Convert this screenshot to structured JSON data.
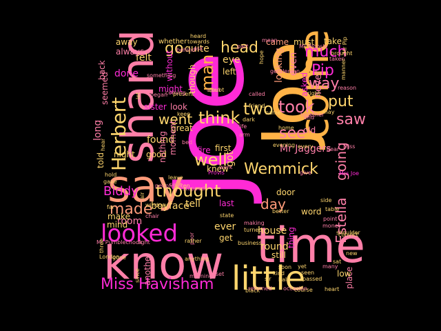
{
  "palette": {
    "magenta": "#ff2bd6",
    "pink": "#ff7fa8",
    "coral": "#ff9b7a",
    "orange": "#ffb347",
    "yellow": "#ffd66e",
    "background": "#000000"
  },
  "words": [
    {
      "text": "Joe",
      "color": "#ff2bd6"
    },
    {
      "text": "Joe",
      "color": "#ffb347"
    },
    {
      "text": "know",
      "color": "#ff7fa8"
    },
    {
      "text": "time",
      "color": "#ff7fa8"
    },
    {
      "text": "come",
      "color": "#ffb347"
    },
    {
      "text": "shand",
      "color": "#ff7fa8"
    },
    {
      "text": "say",
      "color": "#ff9b7a"
    },
    {
      "text": "little",
      "color": "#ffd66e"
    },
    {
      "text": "Miss Havisham",
      "color": "#ff2bd6"
    },
    {
      "text": "looked",
      "color": "#ff2bd6"
    },
    {
      "text": "Herbert",
      "color": "#ffd66e"
    },
    {
      "text": "Wemmick",
      "color": "#ffd66e"
    },
    {
      "text": "well",
      "color": "#ffd66e"
    },
    {
      "text": "thought",
      "color": "#ffd66e"
    },
    {
      "text": "think",
      "color": "#ffd66e"
    },
    {
      "text": "went",
      "color": "#ffd66e"
    },
    {
      "text": "two",
      "color": "#ffd66e"
    },
    {
      "text": "took",
      "color": "#ff7fa8"
    },
    {
      "text": "see",
      "color": "#ff7fa8"
    },
    {
      "text": "made",
      "color": "#ff9b7a"
    },
    {
      "text": "day",
      "color": "#ff9b7a"
    },
    {
      "text": "Estella",
      "color": "#ff7fa8"
    },
    {
      "text": "going",
      "color": "#ff7fa8"
    },
    {
      "text": "Pip",
      "color": "#ff2bd6"
    },
    {
      "text": "much",
      "color": "#ff2bd6"
    },
    {
      "text": "way",
      "color": "#ff7fa8"
    },
    {
      "text": "put",
      "color": "#ffd66e"
    },
    {
      "text": "saw",
      "color": "#ff7fa8"
    },
    {
      "text": "head",
      "color": "#ffd66e"
    },
    {
      "text": "man",
      "color": "#ffb347"
    },
    {
      "text": "go",
      "color": "#ffd66e"
    },
    {
      "text": "Biddy",
      "color": "#ff2bd6"
    },
    {
      "text": "Mr Jaggers",
      "color": "#ff7fa8"
    },
    {
      "text": "house",
      "color": "#ffd66e"
    },
    {
      "text": "round",
      "color": "#ffd66e"
    },
    {
      "text": "felt",
      "color": "#ffd66e"
    },
    {
      "text": "done",
      "color": "#ff2bd6"
    },
    {
      "text": "got",
      "color": "#ffd66e"
    },
    {
      "text": "quite",
      "color": "#ffd66e"
    },
    {
      "text": "eye",
      "color": "#ffd66e"
    },
    {
      "text": "came",
      "color": "#ff9b7a"
    },
    {
      "text": "must",
      "color": "#ffd66e"
    },
    {
      "text": "take",
      "color": "#ffd66e"
    },
    {
      "text": "never",
      "color": "#ff7fa8"
    },
    {
      "text": "found",
      "color": "#ffd66e"
    },
    {
      "text": "door",
      "color": "#ffd66e"
    },
    {
      "text": "word",
      "color": "#ffd66e"
    },
    {
      "text": "room",
      "color": "#ff7fa8"
    },
    {
      "text": "ever",
      "color": "#ffd66e"
    },
    {
      "text": "boy",
      "color": "#ffd66e"
    },
    {
      "text": "face",
      "color": "#ffd66e"
    },
    {
      "text": "tell",
      "color": "#ffd66e"
    },
    {
      "text": "last",
      "color": "#ff2bd6"
    },
    {
      "text": "knew",
      "color": "#ffd66e"
    },
    {
      "text": "first",
      "color": "#ffd66e"
    },
    {
      "text": "fire",
      "color": "#ff2bd6"
    },
    {
      "text": "old",
      "color": "#ff7fa8"
    },
    {
      "text": "even",
      "color": "#ff7fa8"
    },
    {
      "text": "looking",
      "color": "#ff9b7a"
    },
    {
      "text": "asked",
      "color": "#ff2bd6"
    },
    {
      "text": "mind",
      "color": "#ffd66e"
    },
    {
      "text": "make",
      "color": "#ffd66e"
    },
    {
      "text": "long",
      "color": "#ff7fa8"
    },
    {
      "text": "night",
      "color": "#ffd66e"
    },
    {
      "text": "look",
      "color": "#ff7fa8"
    },
    {
      "text": "good",
      "color": "#ffd66e"
    },
    {
      "text": "great",
      "color": "#ffd66e"
    },
    {
      "text": "always",
      "color": "#ff7fa8"
    },
    {
      "text": "away",
      "color": "#ffd66e"
    },
    {
      "text": "back",
      "color": "#ff7fa8"
    },
    {
      "text": "might",
      "color": "#ff2bd6"
    },
    {
      "text": "sister",
      "color": "#ff2bd6"
    },
    {
      "text": "another",
      "color": "#ff7fa8"
    },
    {
      "text": "still",
      "color": "#ffd66e"
    },
    {
      "text": "thing",
      "color": "#ff2bd6"
    },
    {
      "text": "told",
      "color": "#ffd66e"
    },
    {
      "text": "seemed",
      "color": "#ff7fa8"
    },
    {
      "text": "left",
      "color": "#ffd66e"
    },
    {
      "text": "without",
      "color": "#ff2bd6"
    },
    {
      "text": "nothing",
      "color": "#ff7fa8"
    },
    {
      "text": "moment",
      "color": "#ff7fa8"
    },
    {
      "text": "though",
      "color": "#ffd66e"
    },
    {
      "text": "place",
      "color": "#ff7fa8"
    },
    {
      "text": "low",
      "color": "#ffd66e"
    },
    {
      "text": "get",
      "color": "#ffd66e"
    },
    {
      "text": "whether",
      "color": "#ffd66e"
    },
    {
      "text": "towards",
      "color": "#ffd66e"
    },
    {
      "text": "Mr Pumblechook",
      "color": "#ff7fa8"
    },
    {
      "text": "light",
      "color": "#ff7fa8"
    },
    {
      "text": "state",
      "color": "#ffd66e"
    },
    {
      "text": "better",
      "color": "#ffd66e"
    },
    {
      "text": "heart",
      "color": "#ffd66e"
    },
    {
      "text": "course",
      "color": "#ffd66e"
    },
    {
      "text": "returned",
      "color": "#ff7fa8"
    },
    {
      "text": "passed",
      "color": "#ffd66e"
    },
    {
      "text": "seen",
      "color": "#ffd66e"
    },
    {
      "text": "half",
      "color": "#ffd66e"
    },
    {
      "text": "sir",
      "color": "#ffd66e"
    },
    {
      "text": "soon",
      "color": "#ffd66e"
    },
    {
      "text": "yet",
      "color": "#ffd66e"
    },
    {
      "text": "many",
      "color": "#ff7fa8"
    },
    {
      "text": "sat",
      "color": "#ffd66e"
    },
    {
      "text": "side",
      "color": "#ffd66e"
    },
    {
      "text": "table",
      "color": "#ffd66e"
    },
    {
      "text": "point",
      "color": "#ff7fa8"
    },
    {
      "text": "money",
      "color": "#ff7fa8"
    },
    {
      "text": "may",
      "color": "#ffd66e"
    },
    {
      "text": "dear",
      "color": "#ff7fa8"
    },
    {
      "text": "right",
      "color": "#ffd66e"
    },
    {
      "text": "brought",
      "color": "#ffd66e"
    },
    {
      "text": "taken",
      "color": "#ff7fa8"
    },
    {
      "text": "reason",
      "color": "#ff7fa8"
    },
    {
      "text": "gone",
      "color": "#ffd66e"
    },
    {
      "text": "hold",
      "color": "#ffd66e"
    },
    {
      "text": "gave",
      "color": "#ffd66e"
    },
    {
      "text": "let",
      "color": "#ffd66e"
    },
    {
      "text": "something",
      "color": "#ff7fa8"
    },
    {
      "text": "began",
      "color": "#ff7fa8"
    },
    {
      "text": "keep",
      "color": "#ffd66e"
    },
    {
      "text": "life",
      "color": "#ff7fa8"
    },
    {
      "text": "arm",
      "color": "#ff7fa8"
    },
    {
      "text": "friend",
      "color": "#ffd66e"
    },
    {
      "text": "dark",
      "color": "#ffd66e"
    },
    {
      "text": "home",
      "color": "#ffd66e"
    },
    {
      "text": "every",
      "color": "#ffd66e"
    },
    {
      "text": "evening",
      "color": "#ffd66e"
    },
    {
      "text": "work",
      "color": "#ff7fa8"
    },
    {
      "text": "Provis",
      "color": "#ff2bd6"
    },
    {
      "text": "Mrs Joe",
      "color": "#ff2bd6"
    },
    {
      "text": "give",
      "color": "#ff7fa8"
    },
    {
      "text": "leave",
      "color": "#ffd66e"
    },
    {
      "text": "often",
      "color": "#ffd66e"
    },
    {
      "text": "stopped",
      "color": "#ff7fa8"
    },
    {
      "text": "people",
      "color": "#ff7fa8"
    },
    {
      "text": "air",
      "color": "#ffd66e"
    },
    {
      "text": "window",
      "color": "#ffd66e"
    },
    {
      "text": "chair",
      "color": "#ff7fa8"
    },
    {
      "text": "hear",
      "color": "#ffd66e"
    },
    {
      "text": "far",
      "color": "#ffd66e"
    },
    {
      "text": "making",
      "color": "#ff7fa8"
    },
    {
      "text": "turned",
      "color": "#ffd66e"
    },
    {
      "text": "poor",
      "color": "#ff7fa8"
    },
    {
      "text": "rather",
      "color": "#ffd66e"
    },
    {
      "text": "business",
      "color": "#ffd66e"
    },
    {
      "text": "three",
      "color": "#ffd66e"
    },
    {
      "text": "London",
      "color": "#ffd66e"
    },
    {
      "text": "kind",
      "color": "#ffd66e"
    },
    {
      "text": "set",
      "color": "#ff7fa8"
    },
    {
      "text": "morning",
      "color": "#ff7fa8"
    },
    {
      "text": "anything",
      "color": "#ffd66e"
    },
    {
      "text": "since",
      "color": "#ffd66e"
    },
    {
      "text": "black",
      "color": "#ffd66e"
    },
    {
      "text": "occasion",
      "color": "#ff7fa8"
    },
    {
      "text": "new",
      "color": "#ffd66e"
    },
    {
      "text": "convict",
      "color": "#ffd66e"
    },
    {
      "text": "shoulder",
      "color": "#ffd66e"
    },
    {
      "text": "ask",
      "color": "#ff7fa8"
    },
    {
      "text": "part",
      "color": "#ff7fa8"
    },
    {
      "text": "mean",
      "color": "#ff7fa8"
    },
    {
      "text": "heard",
      "color": "#ffd66e"
    },
    {
      "text": "behind",
      "color": "#ff7fa8"
    },
    {
      "text": "Mr Wopsle",
      "color": "#ff7fa8"
    },
    {
      "text": "Mr Pip",
      "color": "#ffd66e"
    },
    {
      "text": "manner",
      "color": "#ffd66e"
    },
    {
      "text": "present",
      "color": "#ffd66e"
    },
    {
      "text": "coming",
      "color": "#ff7fa8"
    },
    {
      "text": "open",
      "color": "#ff7fa8"
    },
    {
      "text": "doubt",
      "color": "#ffd66e"
    },
    {
      "text": "called",
      "color": "#ff7fa8"
    },
    {
      "text": "name",
      "color": "#ffd66e"
    },
    {
      "text": "hope",
      "color": "#ffd66e"
    },
    {
      "text": "gentleman",
      "color": "#ff7fa8"
    },
    {
      "text": "end",
      "color": "#ff7fa8"
    },
    {
      "text": "together",
      "color": "#ff7fa8"
    },
    {
      "text": "Miss",
      "color": "#ff7fa8"
    },
    {
      "text": "case",
      "color": "#ff7fa8"
    },
    {
      "text": "bed",
      "color": "#ff7fa8"
    }
  ]
}
